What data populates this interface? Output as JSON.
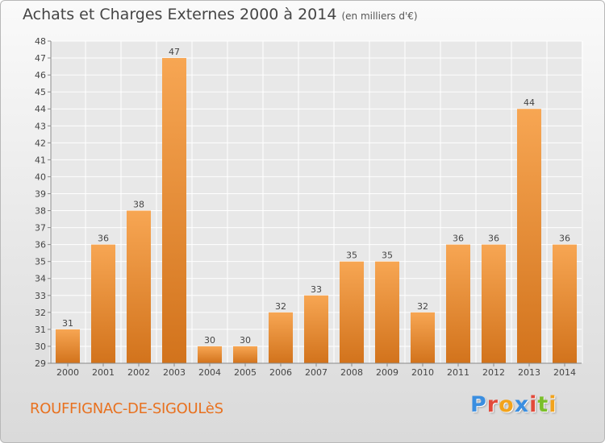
{
  "header": {
    "title": "Achats et Charges Externes 2000 à 2014",
    "subtitle": "(en milliers d'€)"
  },
  "footer": {
    "commune": "ROUFFIGNAC-DE-SIGOULèS",
    "brand": "Proxiti",
    "brand_colors": [
      "#3a8ee0",
      "#e24a3b",
      "#f2a31c",
      "#3a8ee0",
      "#e24a3b",
      "#7bbf2a",
      "#f2a31c"
    ]
  },
  "colors": {
    "bar_top": "#f7a653",
    "bar_bottom": "#d2731c",
    "background": "#e8e8e8",
    "grid": "#ffffff",
    "text": "#454545"
  },
  "chart_data": {
    "type": "bar",
    "categories": [
      "2000",
      "2001",
      "2002",
      "2003",
      "2004",
      "2005",
      "2006",
      "2007",
      "2008",
      "2009",
      "2010",
      "2011",
      "2012",
      "2013",
      "2014"
    ],
    "values": [
      31,
      36,
      38,
      47,
      30,
      30,
      32,
      33,
      35,
      35,
      32,
      36,
      36,
      44,
      36
    ],
    "data_labels": [
      "31",
      "36",
      "38",
      "47",
      "30",
      "30",
      "32",
      "33",
      "35",
      "35",
      "32",
      "36",
      "36",
      "44",
      "36"
    ],
    "y_ticks": [
      "29",
      "30",
      "31",
      "32",
      "33",
      "34",
      "35",
      "36",
      "37",
      "38",
      "39",
      "40",
      "41",
      "42",
      "43",
      "44",
      "45",
      "46",
      "47",
      "48"
    ],
    "ylim": [
      29,
      48
    ],
    "grid": true,
    "legend": "none"
  }
}
